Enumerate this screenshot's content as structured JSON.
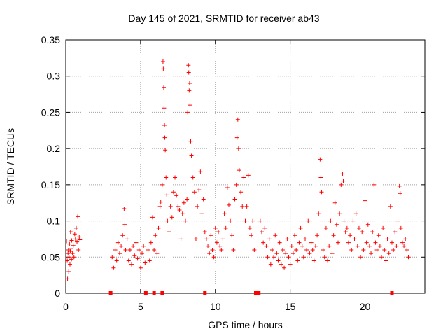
{
  "chart_data": {
    "type": "scatter",
    "title": "Day 145 of 2021, SRMTID for receiver ab43",
    "xlabel": "GPS time / hours",
    "ylabel": "SRMTID / TECUs",
    "xlim": [
      0,
      24
    ],
    "ylim": [
      0,
      0.35
    ],
    "x_ticks": [
      0,
      5,
      10,
      15,
      20
    ],
    "y_ticks": [
      0,
      0.05,
      0.1,
      0.15,
      0.2,
      0.25,
      0.3,
      0.35
    ],
    "y_tick_labels": [
      "0",
      "0.05",
      "0.1",
      "0.15",
      "0.2",
      "0.25",
      "0.3",
      "0.35"
    ],
    "grid": true,
    "marker": "+",
    "color": "#ff0000",
    "gap_markers_x": [
      3.0,
      5.35,
      5.9,
      6.45,
      9.3,
      12.7,
      12.9,
      21.8
    ],
    "series": [
      {
        "name": "SRMTID",
        "points": [
          [
            0.05,
            0.072
          ],
          [
            0.1,
            0.045
          ],
          [
            0.12,
            0.02
          ],
          [
            0.15,
            0.055
          ],
          [
            0.18,
            0.06
          ],
          [
            0.2,
            0.03
          ],
          [
            0.22,
            0.05
          ],
          [
            0.25,
            0.068
          ],
          [
            0.28,
            0.04
          ],
          [
            0.3,
            0.058
          ],
          [
            0.32,
            0.085
          ],
          [
            0.35,
            0.062
          ],
          [
            0.38,
            0.047
          ],
          [
            0.4,
            0.073
          ],
          [
            0.45,
            0.055
          ],
          [
            0.5,
            0.066
          ],
          [
            0.55,
            0.05
          ],
          [
            0.6,
            0.082
          ],
          [
            0.65,
            0.075
          ],
          [
            0.7,
            0.09
          ],
          [
            0.75,
            0.071
          ],
          [
            0.8,
            0.106
          ],
          [
            0.85,
            0.06
          ],
          [
            0.9,
            0.078
          ],
          [
            0.95,
            0.074
          ],
          [
            3.1,
            0.05
          ],
          [
            3.2,
            0.035
          ],
          [
            3.3,
            0.06
          ],
          [
            3.4,
            0.045
          ],
          [
            3.5,
            0.07
          ],
          [
            3.6,
            0.055
          ],
          [
            3.7,
            0.065
          ],
          [
            3.8,
            0.08
          ],
          [
            3.9,
            0.117
          ],
          [
            3.95,
            0.095
          ],
          [
            4.0,
            0.06
          ],
          [
            4.1,
            0.075
          ],
          [
            4.2,
            0.045
          ],
          [
            4.3,
            0.06
          ],
          [
            4.4,
            0.04
          ],
          [
            4.5,
            0.065
          ],
          [
            4.6,
            0.052
          ],
          [
            4.7,
            0.07
          ],
          [
            4.8,
            0.048
          ],
          [
            4.9,
            0.06
          ],
          [
            5.0,
            0.035
          ],
          [
            5.1,
            0.055
          ],
          [
            5.2,
            0.065
          ],
          [
            5.3,
            0.042
          ],
          [
            5.5,
            0.06
          ],
          [
            5.6,
            0.045
          ],
          [
            5.7,
            0.07
          ],
          [
            5.8,
            0.105
          ],
          [
            5.9,
            0.06
          ],
          [
            6.0,
            0.08
          ],
          [
            6.1,
            0.055
          ],
          [
            6.2,
            0.09
          ],
          [
            6.3,
            0.12
          ],
          [
            6.35,
            0.126
          ],
          [
            6.45,
            0.15
          ],
          [
            6.5,
            0.32
          ],
          [
            6.52,
            0.31
          ],
          [
            6.55,
            0.284
          ],
          [
            6.57,
            0.256
          ],
          [
            6.6,
            0.232
          ],
          [
            6.62,
            0.215
          ],
          [
            6.65,
            0.198
          ],
          [
            6.7,
            0.16
          ],
          [
            6.75,
            0.136
          ],
          [
            6.8,
            0.1
          ],
          [
            6.9,
            0.085
          ],
          [
            7.0,
            0.12
          ],
          [
            7.1,
            0.105
          ],
          [
            7.2,
            0.14
          ],
          [
            7.3,
            0.16
          ],
          [
            7.4,
            0.135
          ],
          [
            7.5,
            0.12
          ],
          [
            7.6,
            0.115
          ],
          [
            7.7,
            0.075
          ],
          [
            7.8,
            0.11
          ],
          [
            7.9,
            0.125
          ],
          [
            8.0,
            0.1
          ],
          [
            8.1,
            0.13
          ],
          [
            8.15,
            0.25
          ],
          [
            8.2,
            0.315
          ],
          [
            8.22,
            0.305
          ],
          [
            8.25,
            0.28
          ],
          [
            8.28,
            0.29
          ],
          [
            8.3,
            0.26
          ],
          [
            8.35,
            0.21
          ],
          [
            8.4,
            0.19
          ],
          [
            8.5,
            0.16
          ],
          [
            8.6,
            0.14
          ],
          [
            8.7,
            0.075
          ],
          [
            8.8,
            0.12
          ],
          [
            8.9,
            0.143
          ],
          [
            9.0,
            0.168
          ],
          [
            9.1,
            0.11
          ],
          [
            9.2,
            0.13
          ],
          [
            9.3,
            0.085
          ],
          [
            9.4,
            0.075
          ],
          [
            9.5,
            0.065
          ],
          [
            9.6,
            0.055
          ],
          [
            9.7,
            0.08
          ],
          [
            9.8,
            0.06
          ],
          [
            9.9,
            0.05
          ],
          [
            10.0,
            0.09
          ],
          [
            10.1,
            0.07
          ],
          [
            10.2,
            0.085
          ],
          [
            10.3,
            0.065
          ],
          [
            10.4,
            0.06
          ],
          [
            10.5,
            0.075
          ],
          [
            10.6,
            0.11
          ],
          [
            10.7,
            0.09
          ],
          [
            10.8,
            0.146
          ],
          [
            10.9,
            0.122
          ],
          [
            11.0,
            0.1
          ],
          [
            11.1,
            0.08
          ],
          [
            11.2,
            0.06
          ],
          [
            11.3,
            0.13
          ],
          [
            11.4,
            0.15
          ],
          [
            11.45,
            0.215
          ],
          [
            11.5,
            0.24
          ],
          [
            11.55,
            0.2
          ],
          [
            11.6,
            0.17
          ],
          [
            11.7,
            0.14
          ],
          [
            11.8,
            0.12
          ],
          [
            11.9,
            0.16
          ],
          [
            12.0,
            0.1
          ],
          [
            12.1,
            0.12
          ],
          [
            12.2,
            0.163
          ],
          [
            12.3,
            0.09
          ],
          [
            12.4,
            0.08
          ],
          [
            12.5,
            0.1
          ],
          [
            12.6,
            0.06
          ],
          [
            13.0,
            0.1
          ],
          [
            13.1,
            0.085
          ],
          [
            13.2,
            0.07
          ],
          [
            13.3,
            0.09
          ],
          [
            13.4,
            0.065
          ],
          [
            13.5,
            0.05
          ],
          [
            13.6,
            0.075
          ],
          [
            13.7,
            0.04
          ],
          [
            13.8,
            0.06
          ],
          [
            13.9,
            0.05
          ],
          [
            14.0,
            0.08
          ],
          [
            14.1,
            0.055
          ],
          [
            14.2,
            0.045
          ],
          [
            14.3,
            0.07
          ],
          [
            14.4,
            0.04
          ],
          [
            14.5,
            0.06
          ],
          [
            14.6,
            0.035
          ],
          [
            14.7,
            0.055
          ],
          [
            14.8,
            0.075
          ],
          [
            14.9,
            0.05
          ],
          [
            15.0,
            0.04
          ],
          [
            15.1,
            0.065
          ],
          [
            15.2,
            0.055
          ],
          [
            15.3,
            0.08
          ],
          [
            15.4,
            0.06
          ],
          [
            15.5,
            0.045
          ],
          [
            15.6,
            0.07
          ],
          [
            15.7,
            0.09
          ],
          [
            15.8,
            0.065
          ],
          [
            15.9,
            0.05
          ],
          [
            16.0,
            0.075
          ],
          [
            16.1,
            0.06
          ],
          [
            16.2,
            0.1
          ],
          [
            16.3,
            0.055
          ],
          [
            16.4,
            0.07
          ],
          [
            16.5,
            0.06
          ],
          [
            16.6,
            0.045
          ],
          [
            16.7,
            0.065
          ],
          [
            16.8,
            0.08
          ],
          [
            16.9,
            0.11
          ],
          [
            17.0,
            0.185
          ],
          [
            17.05,
            0.16
          ],
          [
            17.1,
            0.14
          ],
          [
            17.2,
            0.06
          ],
          [
            17.3,
            0.05
          ],
          [
            17.4,
            0.09
          ],
          [
            17.5,
            0.045
          ],
          [
            17.6,
            0.065
          ],
          [
            17.7,
            0.1
          ],
          [
            17.8,
            0.055
          ],
          [
            17.9,
            0.08
          ],
          [
            18.0,
            0.125
          ],
          [
            18.1,
            0.095
          ],
          [
            18.2,
            0.07
          ],
          [
            18.3,
            0.11
          ],
          [
            18.4,
            0.15
          ],
          [
            18.5,
            0.165
          ],
          [
            18.55,
            0.155
          ],
          [
            18.6,
            0.1
          ],
          [
            18.7,
            0.085
          ],
          [
            18.8,
            0.09
          ],
          [
            18.9,
            0.07
          ],
          [
            19.0,
            0.08
          ],
          [
            19.1,
            0.06
          ],
          [
            19.2,
            0.1
          ],
          [
            19.3,
            0.075
          ],
          [
            19.4,
            0.11
          ],
          [
            19.5,
            0.065
          ],
          [
            19.6,
            0.09
          ],
          [
            19.7,
            0.05
          ],
          [
            19.8,
            0.085
          ],
          [
            19.9,
            0.06
          ],
          [
            20.0,
            0.128
          ],
          [
            20.1,
            0.07
          ],
          [
            20.2,
            0.095
          ],
          [
            20.3,
            0.065
          ],
          [
            20.4,
            0.055
          ],
          [
            20.5,
            0.085
          ],
          [
            20.6,
            0.15
          ],
          [
            20.7,
            0.07
          ],
          [
            20.8,
            0.06
          ],
          [
            20.9,
            0.08
          ],
          [
            21.0,
            0.065
          ],
          [
            21.1,
            0.05
          ],
          [
            21.2,
            0.09
          ],
          [
            21.3,
            0.06
          ],
          [
            21.4,
            0.045
          ],
          [
            21.5,
            0.075
          ],
          [
            21.6,
            0.055
          ],
          [
            21.7,
            0.12
          ],
          [
            21.8,
            0.07
          ],
          [
            21.9,
            0.06
          ],
          [
            22.0,
            0.085
          ],
          [
            22.1,
            0.065
          ],
          [
            22.2,
            0.1
          ],
          [
            22.3,
            0.148
          ],
          [
            22.35,
            0.138
          ],
          [
            22.4,
            0.09
          ],
          [
            22.5,
            0.07
          ],
          [
            22.6,
            0.065
          ],
          [
            22.7,
            0.075
          ],
          [
            22.8,
            0.06
          ],
          [
            22.9,
            0.05
          ]
        ]
      }
    ]
  }
}
